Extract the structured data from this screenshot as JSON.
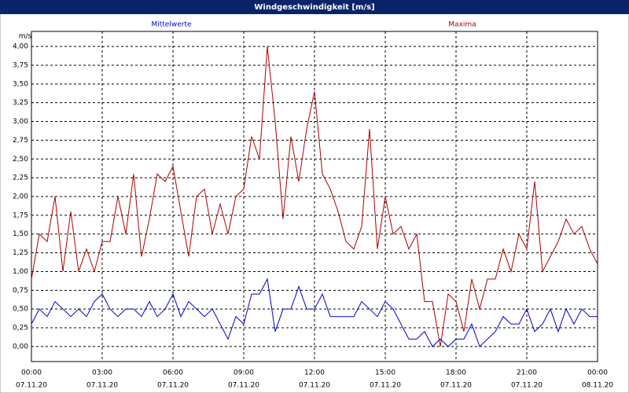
{
  "chart_data": {
    "type": "line",
    "title": "Windgeschwindigkeit [m/s]",
    "y_unit": "m/s",
    "x": [
      0,
      20,
      40,
      60,
      80,
      100,
      120,
      140,
      160,
      180,
      200,
      220,
      240,
      260,
      280,
      300,
      320,
      340,
      360,
      380,
      400,
      420,
      440,
      460,
      480,
      500,
      520,
      540,
      560,
      580,
      600,
      620,
      640,
      660,
      680,
      700,
      720,
      740,
      760,
      780,
      800,
      820,
      840,
      860,
      880,
      900,
      920,
      940,
      960,
      980,
      1000,
      1020,
      1040,
      1060,
      1080,
      1100,
      1120,
      1140,
      1160,
      1180,
      1200,
      1220,
      1240,
      1260,
      1280,
      1300,
      1320,
      1340,
      1360,
      1380,
      1400,
      1420,
      1440
    ],
    "series": [
      {
        "name": "Mittelwerte",
        "color": "#0000cc",
        "values": [
          0.3,
          0.5,
          0.4,
          0.6,
          0.5,
          0.4,
          0.5,
          0.4,
          0.6,
          0.7,
          0.5,
          0.4,
          0.5,
          0.5,
          0.4,
          0.6,
          0.4,
          0.5,
          0.7,
          0.4,
          0.6,
          0.5,
          0.4,
          0.5,
          0.3,
          0.1,
          0.4,
          0.3,
          0.7,
          0.7,
          0.9,
          0.2,
          0.5,
          0.5,
          0.8,
          0.5,
          0.5,
          0.7,
          0.4,
          0.4,
          0.4,
          0.4,
          0.6,
          0.5,
          0.4,
          0.6,
          0.5,
          0.3,
          0.1,
          0.1,
          0.2,
          0.0,
          0.1,
          0.0,
          0.1,
          0.1,
          0.3,
          0.0,
          0.1,
          0.2,
          0.4,
          0.3,
          0.3,
          0.5,
          0.2,
          0.3,
          0.5,
          0.2,
          0.5,
          0.3,
          0.5,
          0.4,
          0.4
        ]
      },
      {
        "name": "Maxima",
        "color": "#aa0000",
        "values": [
          0.9,
          1.5,
          1.4,
          2.0,
          1.0,
          1.8,
          1.0,
          1.3,
          1.0,
          1.4,
          1.4,
          2.0,
          1.5,
          2.3,
          1.2,
          1.7,
          2.3,
          2.2,
          2.4,
          1.8,
          1.2,
          2.0,
          2.1,
          1.5,
          1.9,
          1.5,
          2.0,
          2.1,
          2.8,
          2.5,
          4.0,
          3.0,
          1.7,
          2.8,
          2.2,
          2.9,
          3.4,
          2.3,
          2.1,
          1.8,
          1.4,
          1.3,
          1.6,
          2.9,
          1.3,
          2.0,
          1.5,
          1.6,
          1.3,
          1.5,
          0.6,
          0.6,
          0.0,
          0.7,
          0.6,
          0.2,
          0.9,
          0.5,
          0.9,
          0.9,
          1.3,
          1.0,
          1.5,
          1.3,
          2.2,
          1.0,
          1.2,
          1.4,
          1.7,
          1.5,
          1.6,
          1.3,
          1.1
        ]
      }
    ],
    "xlim": [
      0,
      1440
    ],
    "xticks": [
      {
        "value": 0,
        "label": "00:00"
      },
      {
        "value": 180,
        "label": "03:00"
      },
      {
        "value": 360,
        "label": "06:00"
      },
      {
        "value": 540,
        "label": "09:00"
      },
      {
        "value": 720,
        "label": "12:00"
      },
      {
        "value": 900,
        "label": "15:00"
      },
      {
        "value": 1080,
        "label": "18:00"
      },
      {
        "value": 1260,
        "label": "21:00"
      },
      {
        "value": 1440,
        "label": "00:00"
      }
    ],
    "xtick_dates": [
      "07.11.20",
      "07.11.20",
      "07.11.20",
      "07.11.20",
      "07.11.20",
      "07.11.20",
      "07.11.20",
      "07.11.20",
      "08.11.20"
    ],
    "ylim": [
      -0.2,
      4.2
    ],
    "yticks": [
      {
        "value": 0,
        "label": "0,00"
      },
      {
        "value": 0.25,
        "label": "0,25"
      },
      {
        "value": 0.5,
        "label": "0,50"
      },
      {
        "value": 0.75,
        "label": "0,75"
      },
      {
        "value": 1,
        "label": "1,00"
      },
      {
        "value": 1.25,
        "label": "1,25"
      },
      {
        "value": 1.5,
        "label": "1,50"
      },
      {
        "value": 1.75,
        "label": "1,75"
      },
      {
        "value": 2,
        "label": "2,00"
      },
      {
        "value": 2.25,
        "label": "2,25"
      },
      {
        "value": 2.5,
        "label": "2,50"
      },
      {
        "value": 2.75,
        "label": "2,75"
      },
      {
        "value": 3,
        "label": "3,00"
      },
      {
        "value": 3.25,
        "label": "3,25"
      },
      {
        "value": 3.5,
        "label": "3,50"
      },
      {
        "value": 3.75,
        "label": "3,75"
      },
      {
        "value": 4,
        "label": "4,00"
      }
    ],
    "grid": true
  }
}
